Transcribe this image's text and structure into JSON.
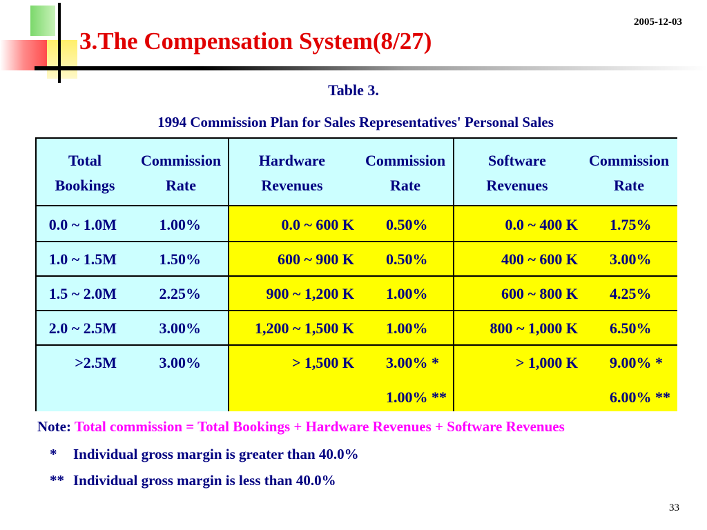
{
  "date": "2005-12-03",
  "title": "3.The Compensation System(8/27)",
  "table_label": "Table 3.",
  "table_caption": "1994 Commission Plan for Sales Representatives' Personal Sales",
  "headers": {
    "total_bookings": [
      "Total",
      "Bookings"
    ],
    "commission_rate_1": [
      "Commission",
      "Rate"
    ],
    "hardware_revenues": [
      "Hardware",
      "Revenues"
    ],
    "commission_rate_2": [
      "Commission",
      "Rate"
    ],
    "software_revenues": [
      "Software",
      "Revenues"
    ],
    "commission_rate_3": [
      "Commission",
      "Rate"
    ]
  },
  "rows": [
    {
      "bookings": "0.0 ~ 1.0M",
      "rate1": "1.00%",
      "hardware": "0.0 ~ 600 K",
      "rate2": "0.50%",
      "software": "0.0 ~ 400 K",
      "rate3": "1.75%"
    },
    {
      "bookings": "1.0 ~ 1.5M",
      "rate1": "1.50%",
      "hardware": "600 ~ 900 K",
      "rate2": "0.50%",
      "software": "400 ~ 600 K",
      "rate3": "3.00%"
    },
    {
      "bookings": "1.5 ~ 2.0M",
      "rate1": "2.25%",
      "hardware": "900 ~ 1,200 K",
      "rate2": "1.00%",
      "software": "600 ~ 800 K",
      "rate3": "4.25%"
    },
    {
      "bookings": "2.0 ~ 2.5M",
      "rate1": "3.00%",
      "hardware": "1,200 ~ 1,500 K",
      "rate2": "1.00%",
      "software": "800 ~ 1,000 K",
      "rate3": "6.50%"
    },
    {
      "bookings": ">2.5M",
      "rate1": "3.00%",
      "hardware": "> 1,500 K",
      "rate2": "3.00% *",
      "rate2_second": "1.00% **",
      "software": "> 1,000 K",
      "rate3": "9.00% *",
      "rate3_second": "6.00% **"
    }
  ],
  "note": {
    "label": "Note:",
    "text": "Total commission = Total Bookings + Hardware Revenues + Software Revenues",
    "footnote1_mark": "*",
    "footnote1_text": "Individual gross margin is greater than 40.0%",
    "footnote2_mark": "**",
    "footnote2_text": "Individual gross margin is less than 40.0%"
  },
  "page_number": "33",
  "colors": {
    "title": "#e00000",
    "text": "#000080",
    "note_highlight": "#ff00ff",
    "header_bg": "#ccffff",
    "body_bg": "#ffff00"
  }
}
